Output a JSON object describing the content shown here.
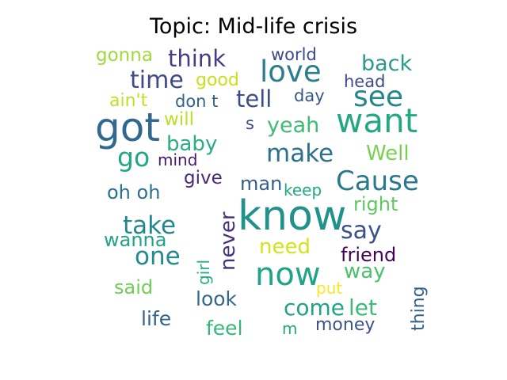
{
  "chart_data": {
    "type": "wordcloud",
    "title": "Topic: Mid-life crisis",
    "colormap": "viridis",
    "words": [
      {
        "text": "know",
        "weight": 52,
        "color": "#21918c",
        "vertical": false
      },
      {
        "text": "got",
        "weight": 50,
        "color": "#31688e",
        "vertical": false
      },
      {
        "text": "want",
        "weight": 42,
        "color": "#26a784",
        "vertical": false
      },
      {
        "text": "now",
        "weight": 40,
        "color": "#20a386",
        "vertical": false
      },
      {
        "text": "love",
        "weight": 37,
        "color": "#2c7e8e",
        "vertical": false
      },
      {
        "text": "see",
        "weight": 36,
        "color": "#25858e",
        "vertical": false
      },
      {
        "text": "Cause",
        "weight": 34,
        "color": "#2a788e",
        "vertical": false
      },
      {
        "text": "go",
        "weight": 33,
        "color": "#22a785",
        "vertical": false
      },
      {
        "text": "make",
        "weight": 31,
        "color": "#2d708e",
        "vertical": false
      },
      {
        "text": "take",
        "weight": 31,
        "color": "#23888e",
        "vertical": false
      },
      {
        "text": "one",
        "weight": 31,
        "color": "#238a8d",
        "vertical": false
      },
      {
        "text": "say",
        "weight": 30,
        "color": "#3b528b",
        "vertical": false
      },
      {
        "text": "time",
        "weight": 30,
        "color": "#3e4a89",
        "vertical": false
      },
      {
        "text": "think",
        "weight": 29,
        "color": "#433e85",
        "vertical": false
      },
      {
        "text": "tell",
        "weight": 29,
        "color": "#3d4d8a",
        "vertical": false
      },
      {
        "text": "come",
        "weight": 28,
        "color": "#20a386",
        "vertical": false
      },
      {
        "text": "let",
        "weight": 28,
        "color": "#3bbb75",
        "vertical": false
      },
      {
        "text": "back",
        "weight": 27,
        "color": "#2a9a8a",
        "vertical": false
      },
      {
        "text": "yeah",
        "weight": 27,
        "color": "#3dbc74",
        "vertical": false
      },
      {
        "text": "baby",
        "weight": 26,
        "color": "#28ae80",
        "vertical": false
      },
      {
        "text": "Well",
        "weight": 26,
        "color": "#7ad151",
        "vertical": false
      },
      {
        "text": "need",
        "weight": 26,
        "color": "#d8e219",
        "vertical": false
      },
      {
        "text": "never",
        "weight": 26,
        "color": "#46307e",
        "vertical": true
      },
      {
        "text": "way",
        "weight": 26,
        "color": "#4ac16d",
        "vertical": false
      },
      {
        "text": "look",
        "weight": 25,
        "color": "#31688e",
        "vertical": false
      },
      {
        "text": "life",
        "weight": 25,
        "color": "#33638d",
        "vertical": false
      },
      {
        "text": "feel",
        "weight": 25,
        "color": "#35b779",
        "vertical": false
      },
      {
        "text": "oh oh",
        "weight": 24,
        "color": "#2c728e",
        "vertical": false
      },
      {
        "text": "wanna",
        "weight": 24,
        "color": "#20a386",
        "vertical": false
      },
      {
        "text": "man",
        "weight": 24,
        "color": "#355f8d",
        "vertical": false
      },
      {
        "text": "right",
        "weight": 24,
        "color": "#5ec962",
        "vertical": false
      },
      {
        "text": "friend",
        "weight": 24,
        "color": "#440154",
        "vertical": false
      },
      {
        "text": "said",
        "weight": 24,
        "color": "#6ece58",
        "vertical": false
      },
      {
        "text": "gonna",
        "weight": 23,
        "color": "#a0da39",
        "vertical": false
      },
      {
        "text": "will",
        "weight": 23,
        "color": "#bddf26",
        "vertical": false
      },
      {
        "text": "give",
        "weight": 23,
        "color": "#482878",
        "vertical": false
      },
      {
        "text": "good",
        "weight": 22,
        "color": "#c8e020",
        "vertical": false
      },
      {
        "text": "ain't",
        "weight": 22,
        "color": "#c0df25",
        "vertical": false
      },
      {
        "text": "money",
        "weight": 22,
        "color": "#3b528b",
        "vertical": false
      },
      {
        "text": "thing",
        "weight": 22,
        "color": "#34608d",
        "vertical": true
      },
      {
        "text": "world",
        "weight": 21,
        "color": "#3e4989",
        "vertical": false
      },
      {
        "text": "head",
        "weight": 21,
        "color": "#3e4c8a",
        "vertical": false
      },
      {
        "text": "don t",
        "weight": 21,
        "color": "#33638d",
        "vertical": false
      },
      {
        "text": "day",
        "weight": 21,
        "color": "#38588c",
        "vertical": false
      },
      {
        "text": "s",
        "weight": 21,
        "color": "#3e4c8a",
        "vertical": false
      },
      {
        "text": "mind",
        "weight": 20,
        "color": "#48186a",
        "vertical": false
      },
      {
        "text": "keep",
        "weight": 20,
        "color": "#22a884",
        "vertical": false
      },
      {
        "text": "girl",
        "weight": 20,
        "color": "#25ac82",
        "vertical": true
      },
      {
        "text": "put",
        "weight": 20,
        "color": "#fde725",
        "vertical": false
      },
      {
        "text": "m",
        "weight": 20,
        "color": "#22a884",
        "vertical": false
      }
    ]
  }
}
